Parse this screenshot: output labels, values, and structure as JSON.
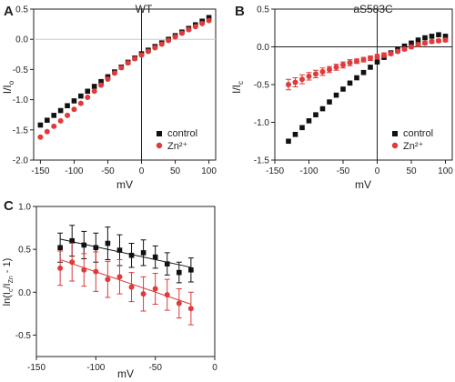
{
  "figure": {
    "panel_letters": [
      "A",
      "B",
      "C"
    ]
  },
  "colors": {
    "control": "#111111",
    "zinc": "#e03a3a",
    "axis": "#222222",
    "zero_line_A": "#c9c9c9",
    "fit_red": "#d23a3a"
  },
  "chart_data": [
    {
      "panel": "A",
      "type": "scatter",
      "title": "WT",
      "xlabel": "mV",
      "ylabel": "I/I",
      "ylabel_subscript": "o",
      "xlim": [
        -160,
        110
      ],
      "ylim": [
        -2.0,
        0.5
      ],
      "xticks": [
        -150,
        -100,
        -50,
        0,
        50,
        100
      ],
      "yticks": [
        -2.0,
        -1.5,
        -1.0,
        -0.5,
        0.0,
        0.5
      ],
      "ytick_labels": [
        "-2.0",
        "-1.5",
        "-1.0",
        "-0.5",
        "0.0",
        "0.5"
      ],
      "vertical_line_at_x": 0,
      "horizontal_line_at_y": 0,
      "legend": {
        "position": "bottom-right",
        "entries": [
          "control",
          "Zn²⁺"
        ]
      },
      "series": [
        {
          "name": "control",
          "marker": "square",
          "x": [
            -150,
            -140,
            -130,
            -120,
            -110,
            -100,
            -90,
            -80,
            -70,
            -60,
            -50,
            -40,
            -30,
            -20,
            -10,
            0,
            10,
            20,
            30,
            40,
            50,
            60,
            70,
            80,
            90,
            100
          ],
          "y": [
            -1.42,
            -1.34,
            -1.26,
            -1.18,
            -1.1,
            -1.02,
            -0.94,
            -0.86,
            -0.78,
            -0.7,
            -0.62,
            -0.54,
            -0.46,
            -0.38,
            -0.31,
            -0.24,
            -0.18,
            -0.12,
            -0.06,
            0.0,
            0.06,
            0.12,
            0.18,
            0.24,
            0.3,
            0.36
          ]
        },
        {
          "name": "Zn²⁺",
          "marker": "circle",
          "x": [
            -150,
            -140,
            -130,
            -120,
            -110,
            -100,
            -90,
            -80,
            -70,
            -60,
            -50,
            -40,
            -30,
            -20,
            -10,
            0,
            10,
            20,
            30,
            40,
            50,
            60,
            70,
            80,
            90,
            100
          ],
          "y": [
            -1.62,
            -1.53,
            -1.44,
            -1.35,
            -1.26,
            -1.16,
            -1.06,
            -0.96,
            -0.86,
            -0.76,
            -0.66,
            -0.56,
            -0.47,
            -0.39,
            -0.32,
            -0.26,
            -0.2,
            -0.14,
            -0.08,
            -0.02,
            0.04,
            0.1,
            0.16,
            0.21,
            0.26,
            0.31
          ]
        }
      ]
    },
    {
      "panel": "B",
      "type": "scatter",
      "title": "aS583C",
      "xlabel": "mV",
      "ylabel": "I/I",
      "ylabel_subscript": "c",
      "xlim": [
        -150,
        110
      ],
      "ylim": [
        -1.5,
        0.5
      ],
      "xticks": [
        -150,
        -100,
        -50,
        0,
        50,
        100
      ],
      "yticks": [
        -1.5,
        -1.0,
        -0.5,
        0.0,
        0.5
      ],
      "ytick_labels": [
        "-1.5",
        "-1.0",
        "-0.5",
        "0.0",
        "0.5"
      ],
      "vertical_line_at_x": 0,
      "horizontal_line_at_y": 0,
      "legend": {
        "position": "bottom-right",
        "entries": [
          "control",
          "Zn²⁺"
        ]
      },
      "series": [
        {
          "name": "control",
          "marker": "square",
          "x": [
            -130,
            -120,
            -110,
            -100,
            -90,
            -80,
            -70,
            -60,
            -50,
            -40,
            -30,
            -20,
            -10,
            0,
            10,
            20,
            30,
            40,
            50,
            60,
            70,
            80,
            90,
            100
          ],
          "y": [
            -1.25,
            -1.16,
            -1.07,
            -0.98,
            -0.9,
            -0.82,
            -0.73,
            -0.64,
            -0.56,
            -0.48,
            -0.41,
            -0.34,
            -0.27,
            -0.2,
            -0.14,
            -0.08,
            -0.03,
            0.01,
            0.05,
            0.09,
            0.12,
            0.14,
            0.16,
            0.14
          ]
        },
        {
          "name": "Zn²⁺",
          "marker": "circle",
          "x": [
            -130,
            -120,
            -110,
            -100,
            -90,
            -80,
            -70,
            -60,
            -50,
            -40,
            -30,
            -20,
            -10,
            0,
            10,
            20,
            30,
            40,
            50,
            60,
            70,
            80,
            90,
            100
          ],
          "y": [
            -0.5,
            -0.47,
            -0.43,
            -0.39,
            -0.36,
            -0.33,
            -0.3,
            -0.27,
            -0.24,
            -0.21,
            -0.19,
            -0.17,
            -0.15,
            -0.13,
            -0.11,
            -0.09,
            -0.06,
            -0.03,
            0.0,
            0.03,
            0.05,
            0.07,
            0.08,
            0.09
          ],
          "err": [
            0.07,
            0.06,
            0.06,
            0.05,
            0.05,
            0.05,
            0.04,
            0.04,
            0.04,
            0.04,
            0.03,
            0.03,
            0.03,
            0.03,
            0.03,
            0.02,
            0.02,
            0.02,
            0.02,
            0.02,
            0.02,
            0.02,
            0.02,
            0.02
          ]
        }
      ]
    },
    {
      "panel": "C",
      "type": "scatter",
      "xlabel": "mV",
      "ylabel_parts": {
        "open": "ln(I",
        "sub1": "c",
        "mid": "/I",
        "sub2": "Zn",
        "close": " - 1)"
      },
      "xlim": [
        -150,
        0
      ],
      "ylim": [
        -0.75,
        1.0
      ],
      "xticks": [
        -150,
        -100,
        -50,
        0
      ],
      "yticks": [
        -0.5,
        0.0,
        0.5,
        1.0
      ],
      "ytick_labels": [
        "-0.5",
        "0.0",
        "0.5",
        "1.0"
      ],
      "series": [
        {
          "name": "control",
          "marker": "square",
          "x": [
            -130,
            -120,
            -110,
            -100,
            -90,
            -80,
            -70,
            -60,
            -50,
            -40,
            -30,
            -20
          ],
          "y": [
            0.52,
            0.6,
            0.55,
            0.52,
            0.57,
            0.49,
            0.43,
            0.46,
            0.41,
            0.33,
            0.23,
            0.26
          ],
          "err": [
            0.17,
            0.18,
            0.16,
            0.17,
            0.19,
            0.18,
            0.14,
            0.15,
            0.13,
            0.13,
            0.12,
            0.14
          ],
          "fit": {
            "x": [
              -130,
              -20
            ],
            "y": [
              0.62,
              0.29
            ]
          }
        },
        {
          "name": "Zn²⁺",
          "marker": "circle",
          "x": [
            -130,
            -120,
            -110,
            -100,
            -90,
            -80,
            -70,
            -60,
            -50,
            -40,
            -30,
            -20
          ],
          "y": [
            0.28,
            0.35,
            0.26,
            0.24,
            0.15,
            0.18,
            0.06,
            -0.02,
            0.04,
            -0.03,
            -0.13,
            -0.19
          ],
          "err": [
            0.2,
            0.22,
            0.19,
            0.23,
            0.21,
            0.2,
            0.17,
            0.2,
            0.18,
            0.18,
            0.17,
            0.19
          ],
          "fit": {
            "x": [
              -130,
              -20
            ],
            "y": [
              0.38,
              -0.14
            ]
          }
        }
      ]
    }
  ]
}
